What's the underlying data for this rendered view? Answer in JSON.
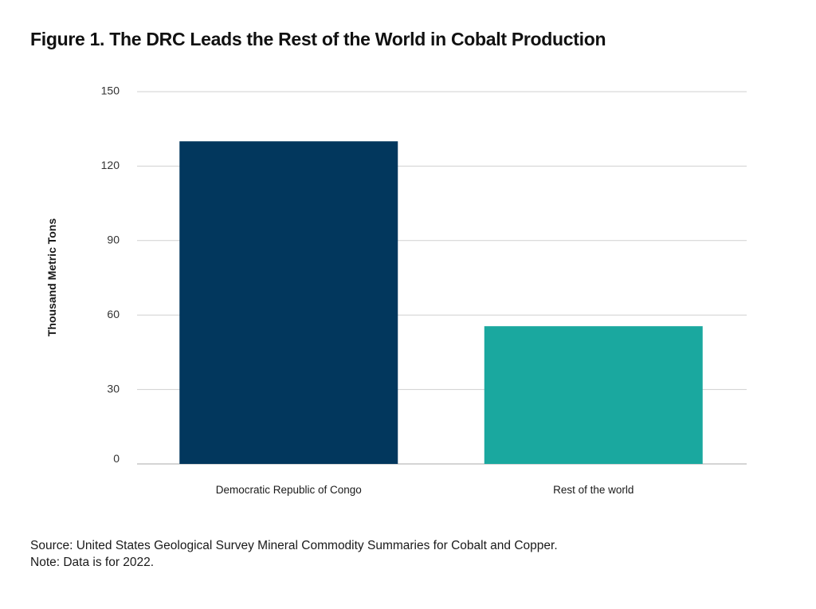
{
  "title": "Figure 1. The DRC Leads the Rest of the World in Cobalt Production",
  "source_note": "Source: United States Geological Survey Mineral Commodity Summaries for Cobalt and Copper.",
  "data_note": "Note: Data is for 2022.",
  "chart_data": {
    "type": "bar",
    "title": "Figure 1. The DRC Leads the Rest of the World in Cobalt Production",
    "xlabel": "",
    "ylabel": "Thousand Metric Tons",
    "categories": [
      "Democratic Republic of Congo",
      "Rest of the world"
    ],
    "values": [
      130,
      55.5
    ],
    "colors": [
      "#02375d",
      "#1aa89f"
    ],
    "ylim": [
      0,
      150
    ],
    "yticks": [
      0,
      30,
      60,
      90,
      120,
      150
    ],
    "grid": true,
    "legend": "none"
  },
  "colors": {
    "gridline": "#d0d0d0",
    "baseline": "#a8a8a8"
  }
}
